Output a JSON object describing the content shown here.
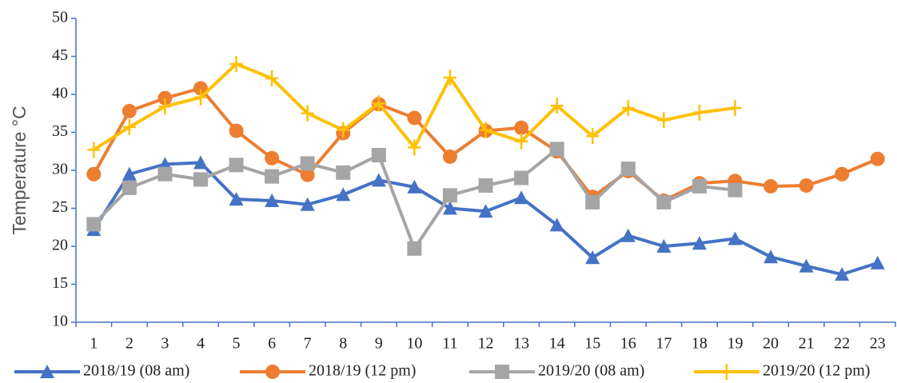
{
  "chart_data": {
    "type": "line",
    "ylabel": "Temperature °C",
    "categories": [
      "1",
      "2",
      "3",
      "4",
      "5",
      "6",
      "7",
      "8",
      "9",
      "10",
      "11",
      "12",
      "13",
      "14",
      "15",
      "16",
      "17",
      "18",
      "19",
      "20",
      "21",
      "22",
      "23"
    ],
    "series": [
      {
        "name": "2018/19 (08 am)",
        "color": "#4472c4",
        "marker": "triangle",
        "values": [
          22.2,
          29.5,
          30.8,
          31.0,
          26.2,
          26.0,
          25.5,
          26.8,
          28.7,
          27.8,
          25.0,
          24.6,
          26.4,
          22.8,
          18.5,
          21.4,
          20.0,
          20.4,
          21.0,
          18.6,
          17.4,
          16.3,
          17.8
        ]
      },
      {
        "name": "2018/19 (12 pm)",
        "color": "#ed7d31",
        "marker": "circle",
        "values": [
          29.5,
          37.8,
          39.5,
          40.8,
          35.2,
          31.6,
          29.4,
          34.9,
          38.7,
          36.9,
          31.8,
          35.2,
          35.6,
          32.5,
          26.5,
          29.9,
          26.0,
          28.3,
          28.6,
          27.9,
          28.0,
          29.5,
          31.5
        ]
      },
      {
        "name": "2019/20 (08 am)",
        "color": "#a5a5a5",
        "marker": "square",
        "values": [
          22.9,
          27.7,
          29.5,
          28.8,
          30.7,
          29.2,
          30.9,
          29.7,
          32.0,
          19.7,
          26.7,
          28.0,
          29.0,
          32.8,
          25.8,
          30.2,
          25.8,
          27.9,
          27.4,
          null,
          null,
          null,
          null
        ]
      },
      {
        "name": "2019/20 (12 pm)",
        "color": "#ffc000",
        "marker": "plus",
        "values": [
          32.7,
          35.7,
          38.4,
          39.6,
          44.0,
          42.1,
          37.5,
          35.3,
          38.8,
          33.0,
          42.2,
          35.3,
          33.8,
          38.5,
          34.5,
          38.2,
          36.6,
          37.6,
          38.2,
          null,
          null,
          null,
          null
        ]
      }
    ],
    "ylim": [
      10,
      50
    ],
    "yticks": [
      10,
      15,
      20,
      25,
      30,
      35,
      40,
      45,
      50
    ],
    "grid": false,
    "legend": "bottom"
  }
}
